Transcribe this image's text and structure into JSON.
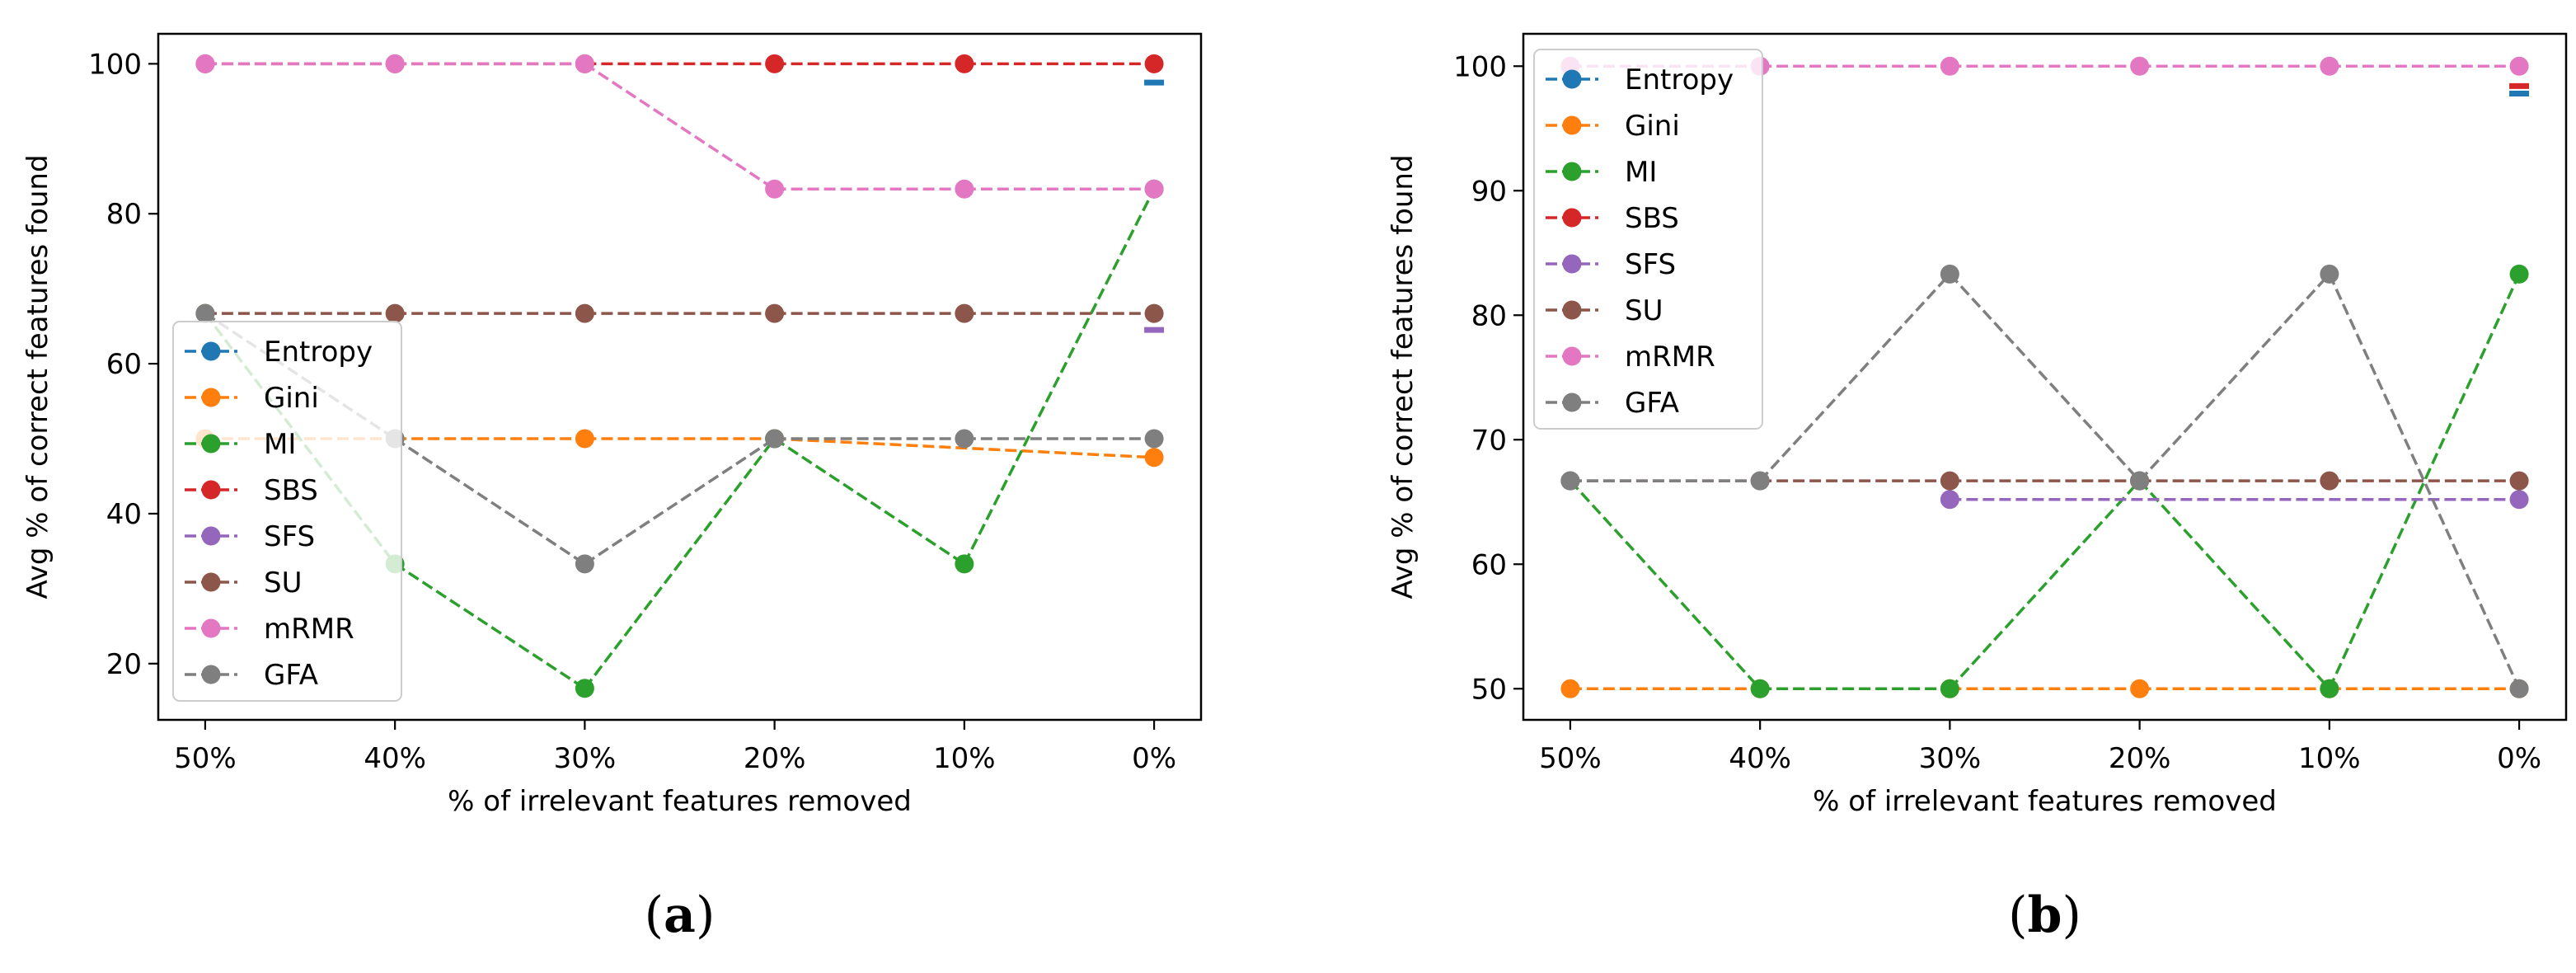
{
  "figure": {
    "series_style": [
      {
        "name": "Entropy",
        "color": "#1f77b4"
      },
      {
        "name": "Gini",
        "color": "#ff7f0e"
      },
      {
        "name": "MI",
        "color": "#2ca02c"
      },
      {
        "name": "SBS",
        "color": "#d62728"
      },
      {
        "name": "SFS",
        "color": "#9467bd"
      },
      {
        "name": "SU",
        "color": "#8c564b"
      },
      {
        "name": "mRMR",
        "color": "#e377c2"
      },
      {
        "name": "GFA",
        "color": "#7f7f7f"
      }
    ]
  },
  "chart_data": [
    {
      "id": "a",
      "panel_label": "a",
      "type": "line",
      "title": "",
      "xlabel": "% of irrelevant features removed",
      "ylabel": "Avg % of correct features found",
      "categories": [
        "50%",
        "40%",
        "30%",
        "20%",
        "10%",
        "0%"
      ],
      "ylim": [
        12.5,
        104
      ],
      "yticks": [
        20,
        40,
        60,
        80,
        100
      ],
      "legend_position": "lower-left",
      "series": [
        {
          "name": "Entropy",
          "values": [
            null,
            null,
            null,
            null,
            null,
            97.5
          ]
        },
        {
          "name": "Gini",
          "values": [
            50,
            50,
            50,
            50,
            null,
            47.5
          ]
        },
        {
          "name": "MI",
          "values": [
            66.7,
            33.3,
            16.7,
            50,
            33.3,
            83.3
          ]
        },
        {
          "name": "SBS",
          "values": [
            100,
            100,
            100,
            100,
            100,
            100
          ]
        },
        {
          "name": "SFS",
          "values": [
            null,
            null,
            null,
            null,
            null,
            64.5
          ]
        },
        {
          "name": "SU",
          "values": [
            66.7,
            66.7,
            66.7,
            66.7,
            66.7,
            66.7
          ]
        },
        {
          "name": "mRMR",
          "values": [
            100,
            100,
            100,
            83.3,
            83.3,
            83.3
          ]
        },
        {
          "name": "GFA",
          "values": [
            66.7,
            50,
            33.3,
            50,
            50,
            50
          ]
        }
      ]
    },
    {
      "id": "b",
      "panel_label": "b",
      "type": "line",
      "title": "",
      "xlabel": "% of irrelevant features removed",
      "ylabel": "Avg % of correct features found",
      "categories": [
        "50%",
        "40%",
        "30%",
        "20%",
        "10%",
        "0%"
      ],
      "ylim": [
        47.5,
        102.6
      ],
      "yticks": [
        50,
        60,
        70,
        80,
        90,
        100
      ],
      "legend_position": "upper-left",
      "series": [
        {
          "name": "Entropy",
          "values": [
            null,
            null,
            null,
            null,
            null,
            97.8
          ]
        },
        {
          "name": "Gini",
          "values": [
            50,
            50,
            50,
            50,
            50,
            50
          ]
        },
        {
          "name": "MI",
          "values": [
            66.7,
            50,
            50,
            66.7,
            50,
            83.3
          ]
        },
        {
          "name": "SBS",
          "values": [
            null,
            null,
            null,
            null,
            null,
            98.4
          ]
        },
        {
          "name": "SFS",
          "values": [
            null,
            null,
            65.2,
            null,
            null,
            65.2
          ]
        },
        {
          "name": "SU",
          "values": [
            66.7,
            66.7,
            66.7,
            66.7,
            66.7,
            66.7
          ]
        },
        {
          "name": "mRMR",
          "values": [
            100,
            100,
            100,
            100,
            100,
            100
          ]
        },
        {
          "name": "GFA",
          "values": [
            66.7,
            66.7,
            83.3,
            66.7,
            83.3,
            50
          ]
        }
      ]
    }
  ]
}
